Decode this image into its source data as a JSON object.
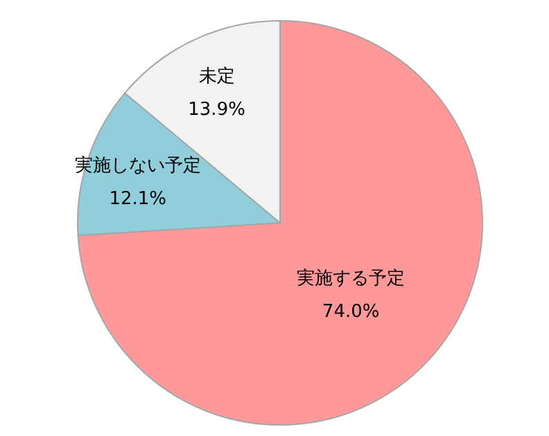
{
  "chart_data": {
    "type": "pie",
    "categories": [
      "実施する予定",
      "実施しない予定",
      "未定"
    ],
    "values": [
      74.0,
      12.1,
      13.9
    ],
    "value_labels": [
      "74.0%",
      "12.1%",
      "13.9%"
    ],
    "colors": [
      "#ff9999",
      "#92cddc",
      "#f2f2f2"
    ]
  }
}
